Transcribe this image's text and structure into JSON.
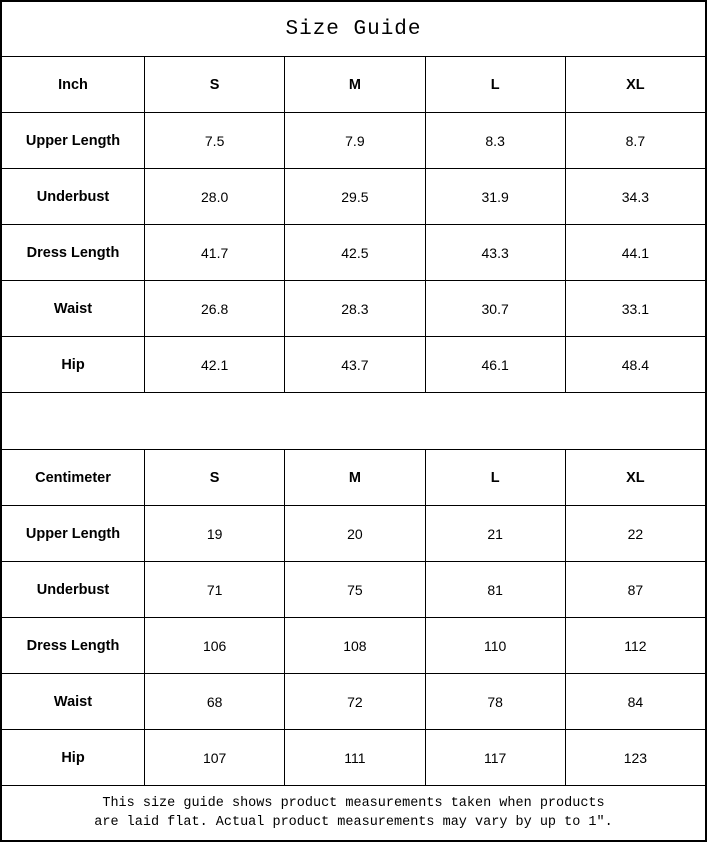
{
  "title": "Size Guide",
  "tables": [
    {
      "unit": "Inch",
      "sizes": [
        "S",
        "M",
        "L",
        "XL"
      ],
      "rows": [
        {
          "label": "Upper Length",
          "values": [
            "7.5",
            "7.9",
            "8.3",
            "8.7"
          ]
        },
        {
          "label": "Underbust",
          "values": [
            "28.0",
            "29.5",
            "31.9",
            "34.3"
          ]
        },
        {
          "label": "Dress Length",
          "values": [
            "41.7",
            "42.5",
            "43.3",
            "44.1"
          ]
        },
        {
          "label": "Waist",
          "values": [
            "26.8",
            "28.3",
            "30.7",
            "33.1"
          ]
        },
        {
          "label": "Hip",
          "values": [
            "42.1",
            "43.7",
            "46.1",
            "48.4"
          ]
        }
      ]
    },
    {
      "unit": "Centimeter",
      "sizes": [
        "S",
        "M",
        "L",
        "XL"
      ],
      "rows": [
        {
          "label": "Upper Length",
          "values": [
            "19",
            "20",
            "21",
            "22"
          ]
        },
        {
          "label": "Underbust",
          "values": [
            "71",
            "75",
            "81",
            "87"
          ]
        },
        {
          "label": "Dress Length",
          "values": [
            "106",
            "108",
            "110",
            "112"
          ]
        },
        {
          "label": "Waist",
          "values": [
            "68",
            "72",
            "78",
            "84"
          ]
        },
        {
          "label": "Hip",
          "values": [
            "107",
            "111",
            "117",
            "123"
          ]
        }
      ]
    }
  ],
  "footer": {
    "line1": "This size guide shows product measurements taken when products",
    "line2": "are laid flat. Actual product measurements may vary by up to 1″."
  },
  "colors": {
    "border": "#000000",
    "background": "#ffffff",
    "text": "#000000"
  }
}
